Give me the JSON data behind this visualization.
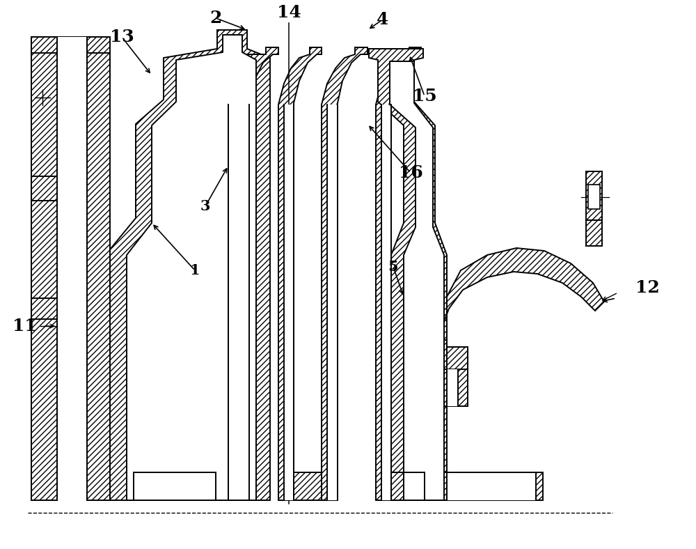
{
  "fig_width": 10.0,
  "fig_height": 7.88,
  "dpi": 100,
  "hatch": "////",
  "lw": 1.4
}
